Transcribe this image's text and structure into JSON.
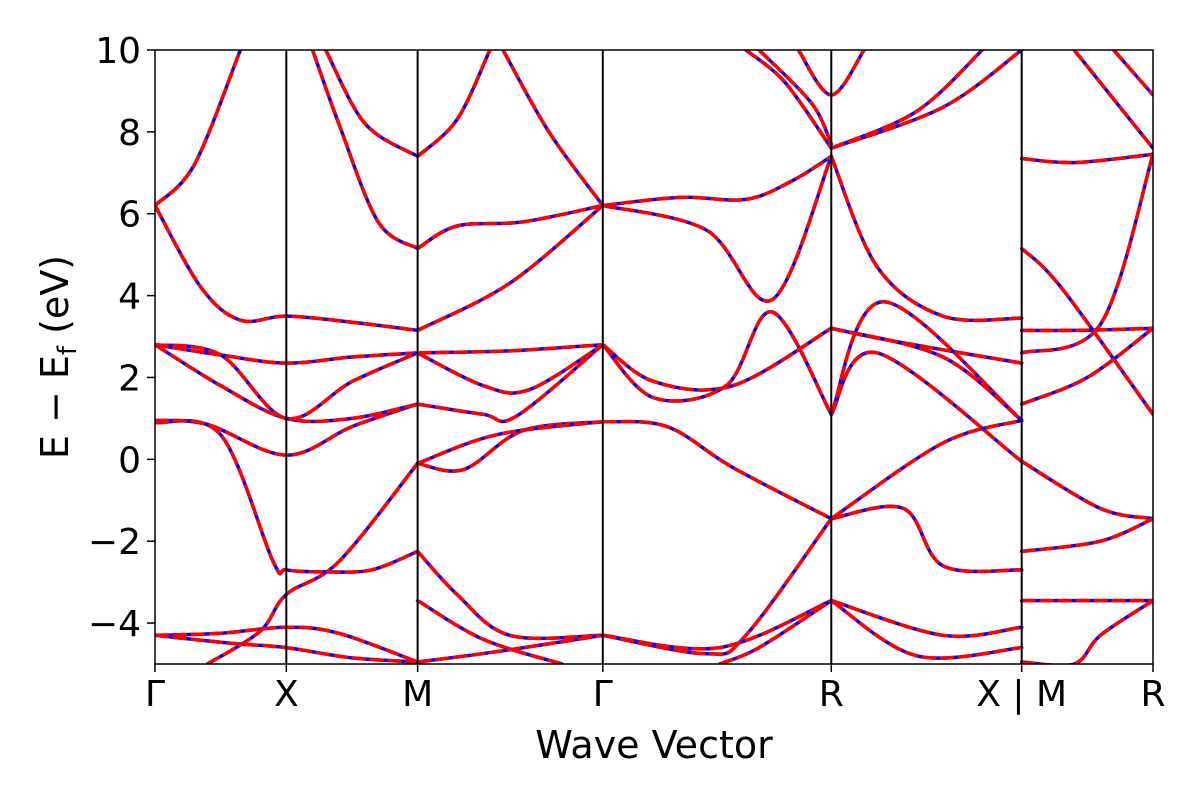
{
  "chart_data": {
    "type": "line",
    "title": "",
    "xlabel": "Wave Vector",
    "ylabel_main": "E − E",
    "ylabel_sub": "f",
    "ylabel_unit": " (eV)",
    "ylim": [
      -5,
      10
    ],
    "yticks": [
      -4,
      -2,
      0,
      2,
      4,
      6,
      8,
      10
    ],
    "ytick_labels": [
      "−4",
      "−2",
      "0",
      "2",
      "4",
      "6",
      "8",
      "10"
    ],
    "xlim": [
      0,
      7.6
    ],
    "high_symmetry_points": [
      {
        "label": "Γ",
        "x": 0.0
      },
      {
        "label": "X",
        "x": 1.0
      },
      {
        "label": "M",
        "x": 2.0
      },
      {
        "label": "Γ",
        "x": 3.41
      },
      {
        "label": "R",
        "x": 5.15
      },
      {
        "label": "X | M",
        "x": 6.6
      },
      {
        "label": "R",
        "x": 7.6
      }
    ],
    "grid": false,
    "colors": {
      "dft": "#0000ff",
      "fit": "#ff0000",
      "vline": "#000000",
      "frame": "#000000"
    },
    "series": [
      {
        "style": "blue-solid",
        "segments": [
          [
            [
              0,
              -4.3
            ],
            [
              0.5,
              -4.25
            ],
            [
              1,
              -4.1
            ],
            [
              1.4,
              -4.25
            ],
            [
              2,
              -4.95
            ]
          ],
          [
            [
              0,
              -4.3
            ],
            [
              0.6,
              -4.5
            ],
            [
              1,
              -4.6
            ],
            [
              1.5,
              -4.85
            ],
            [
              2,
              -4.95
            ]
          ],
          [
            [
              0.4,
              -5
            ],
            [
              0.8,
              -4.2
            ],
            [
              1,
              -3.3
            ],
            [
              1.4,
              -2.5
            ],
            [
              2,
              -0.1
            ]
          ],
          [
            [
              0,
              0.9
            ],
            [
              0.5,
              0.6
            ],
            [
              0.9,
              -2.5
            ],
            [
              1,
              -2.7
            ],
            [
              1.3,
              -2.75
            ],
            [
              1.65,
              -2.7
            ],
            [
              2,
              -2.25
            ]
          ],
          [
            [
              0,
              0.95
            ],
            [
              0.4,
              0.85
            ],
            [
              1,
              0.1
            ],
            [
              1.5,
              0.8
            ],
            [
              2,
              1.35
            ]
          ],
          [
            [
              0,
              2.8
            ],
            [
              0.5,
              1.8
            ],
            [
              1,
              1.0
            ],
            [
              1.5,
              1.0
            ],
            [
              2,
              1.35
            ]
          ],
          [
            [
              0,
              2.8
            ],
            [
              0.5,
              2.55
            ],
            [
              1,
              2.35
            ],
            [
              1.5,
              2.5
            ],
            [
              2,
              2.6
            ]
          ],
          [
            [
              0,
              2.8
            ],
            [
              0.5,
              2.55
            ],
            [
              1,
              1.0
            ],
            [
              1.5,
              1.9
            ],
            [
              2,
              2.6
            ]
          ],
          [
            [
              0,
              6.2
            ],
            [
              0.35,
              4.2
            ],
            [
              0.65,
              3.4
            ],
            [
              1,
              3.5
            ],
            [
              1.5,
              3.35
            ],
            [
              2,
              3.15
            ]
          ],
          [
            [
              0,
              6.2
            ],
            [
              0.3,
              7.2
            ],
            [
              0.65,
              10
            ]
          ],
          [
            [
              1.2,
              10
            ],
            [
              1.4,
              8.2
            ],
            [
              1.7,
              5.8
            ],
            [
              2,
              5.15
            ]
          ],
          [
            [
              1.3,
              10
            ],
            [
              1.6,
              8.2
            ],
            [
              2,
              7.4
            ]
          ],
          [
            [
              2,
              -0.1
            ],
            [
              2.35,
              -0.25
            ],
            [
              2.8,
              0.7
            ],
            [
              3.41,
              0.92
            ]
          ],
          [
            [
              2,
              -0.1
            ],
            [
              2.6,
              0.6
            ],
            [
              3.41,
              0.92
            ]
          ],
          [
            [
              2,
              1.35
            ],
            [
              2.5,
              1.1
            ],
            [
              2.75,
              1.05
            ],
            [
              3.41,
              2.8
            ]
          ],
          [
            [
              2,
              2.6
            ],
            [
              2.5,
              1.8
            ],
            [
              2.85,
              1.7
            ],
            [
              3.41,
              2.8
            ]
          ],
          [
            [
              2,
              2.6
            ],
            [
              2.7,
              2.65
            ],
            [
              3.41,
              2.8
            ]
          ],
          [
            [
              2,
              3.15
            ],
            [
              2.7,
              4.3
            ],
            [
              3.41,
              6.2
            ]
          ],
          [
            [
              2,
              5.15
            ],
            [
              2.3,
              5.7
            ],
            [
              2.8,
              5.8
            ],
            [
              3.41,
              6.2
            ]
          ],
          [
            [
              2,
              7.4
            ],
            [
              2.3,
              8.3
            ],
            [
              2.55,
              10
            ]
          ],
          [
            [
              2.65,
              10
            ],
            [
              3,
              8
            ],
            [
              3.41,
              6.2
            ]
          ],
          [
            [
              2,
              -2.25
            ],
            [
              2.3,
              -3.3
            ],
            [
              2.7,
              -4.3
            ],
            [
              3.41,
              -4.3
            ]
          ],
          [
            [
              2,
              -3.45
            ],
            [
              2.5,
              -4.4
            ],
            [
              3.1,
              -5
            ]
          ],
          [
            [
              2,
              -4.95
            ],
            [
              2.6,
              -4.7
            ],
            [
              3.41,
              -4.3
            ]
          ],
          [
            [
              3.41,
              0.92
            ],
            [
              3.9,
              0.8
            ],
            [
              4.4,
              -0.2
            ],
            [
              5.15,
              -1.45
            ]
          ],
          [
            [
              3.41,
              2.8
            ],
            [
              3.8,
              1.5
            ],
            [
              4.35,
              1.8
            ],
            [
              4.7,
              3.6
            ],
            [
              5.15,
              1.1
            ]
          ],
          [
            [
              3.41,
              2.8
            ],
            [
              3.8,
              1.9
            ],
            [
              4.4,
              1.8
            ],
            [
              5.15,
              3.2
            ]
          ],
          [
            [
              3.41,
              6.2
            ],
            [
              4,
              6.4
            ],
            [
              4.5,
              6.35
            ],
            [
              4.85,
              6.8
            ],
            [
              5.15,
              7.4
            ]
          ],
          [
            [
              3.41,
              6.2
            ],
            [
              4.2,
              5.6
            ],
            [
              4.7,
              3.9
            ],
            [
              5.15,
              7.4
            ]
          ],
          [
            [
              3.41,
              -4.3
            ],
            [
              4.2,
              -4.75
            ],
            [
              4.5,
              -4.3
            ],
            [
              5.15,
              -1.45
            ]
          ],
          [
            [
              3.41,
              -4.3
            ],
            [
              4.3,
              -4.6
            ],
            [
              5.15,
              -3.45
            ]
          ],
          [
            [
              4.3,
              -5
            ],
            [
              4.6,
              -4.6
            ],
            [
              5.15,
              -3.45
            ]
          ],
          [
            [
              4.9,
              10
            ],
            [
              5.15,
              8.9
            ],
            [
              5.4,
              10
            ]
          ],
          [
            [
              4.5,
              10
            ],
            [
              4.8,
              9.2
            ],
            [
              5.15,
              7.6
            ]
          ],
          [
            [
              4.6,
              10
            ],
            [
              5.0,
              8.7
            ],
            [
              5.15,
              7.7
            ]
          ],
          [
            [
              5.15,
              1.1
            ],
            [
              5.5,
              2.6
            ],
            [
              6.6,
              -0.05
            ]
          ],
          [
            [
              5.15,
              1.1
            ],
            [
              5.55,
              3.85
            ],
            [
              6.6,
              0.95
            ]
          ],
          [
            [
              5.15,
              3.2
            ],
            [
              5.6,
              2.9
            ],
            [
              6.6,
              2.35
            ]
          ],
          [
            [
              5.15,
              3.2
            ],
            [
              6,
              2.5
            ],
            [
              6.6,
              0.95
            ]
          ],
          [
            [
              5.15,
              -1.45
            ],
            [
              5.7,
              -1.2
            ],
            [
              6,
              -2.6
            ],
            [
              6.6,
              -2.7
            ]
          ],
          [
            [
              5.15,
              -1.45
            ],
            [
              6,
              0.4
            ],
            [
              6.6,
              0.95
            ]
          ],
          [
            [
              5.15,
              -3.45
            ],
            [
              5.8,
              -4.8
            ],
            [
              6.6,
              -4.6
            ]
          ],
          [
            [
              5.15,
              -3.45
            ],
            [
              6,
              -4.3
            ],
            [
              6.6,
              -4.1
            ]
          ],
          [
            [
              5.15,
              7.4
            ],
            [
              5.5,
              4.7
            ],
            [
              6,
              3.5
            ],
            [
              6.6,
              3.45
            ]
          ],
          [
            [
              5.15,
              7.6
            ],
            [
              6,
              8.6
            ],
            [
              6.6,
              10
            ]
          ],
          [
            [
              5.15,
              7.6
            ],
            [
              5.8,
              8.5
            ],
            [
              6.3,
              10
            ]
          ],
          [
            [
              6.6,
              7.35
            ],
            [
              7.0,
              7.25
            ],
            [
              7.6,
              7.45
            ]
          ],
          [
            [
              6.6,
              5.15
            ],
            [
              6.9,
              4.2
            ],
            [
              7.6,
              1.1
            ]
          ],
          [
            [
              6.6,
              3.15
            ],
            [
              7.0,
              3.15
            ],
            [
              7.6,
              3.2
            ]
          ],
          [
            [
              6.6,
              2.6
            ],
            [
              7.2,
              3.3
            ],
            [
              7.6,
              7.45
            ]
          ],
          [
            [
              6.6,
              1.35
            ],
            [
              7.1,
              2.0
            ],
            [
              7.6,
              3.2
            ]
          ],
          [
            [
              6.6,
              -0.05
            ],
            [
              7.2,
              -1.2
            ],
            [
              7.6,
              -1.45
            ]
          ],
          [
            [
              6.6,
              -2.25
            ],
            [
              7.2,
              -2.0
            ],
            [
              7.6,
              -1.45
            ]
          ],
          [
            [
              6.6,
              -3.45
            ],
            [
              7.6,
              -3.45
            ]
          ],
          [
            [
              6.6,
              -4.95
            ],
            [
              7.0,
              -5
            ],
            [
              7.2,
              -4.3
            ],
            [
              7.6,
              -3.45
            ]
          ],
          [
            [
              7.0,
              10
            ],
            [
              7.6,
              7.6
            ]
          ],
          [
            [
              7.3,
              10
            ],
            [
              7.6,
              8.9
            ]
          ]
        ]
      }
    ]
  }
}
